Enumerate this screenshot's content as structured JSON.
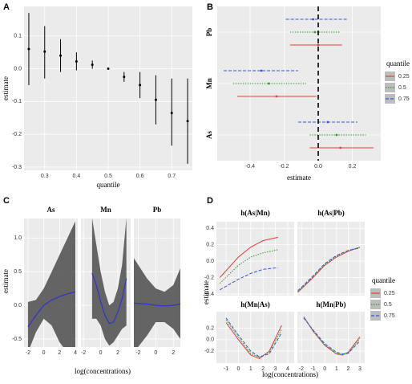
{
  "chart_data": [
    {
      "type": "pointrange",
      "label": "A",
      "xlabel": "quantile",
      "ylabel": "estimate",
      "x": [
        0.25,
        0.3,
        0.35,
        0.4,
        0.45,
        0.5,
        0.55,
        0.6,
        0.65,
        0.7,
        0.75
      ],
      "values": [
        0.06,
        0.052,
        0.04,
        0.022,
        0.012,
        0.0,
        -0.025,
        -0.05,
        -0.095,
        -0.135,
        -0.16
      ],
      "lower": [
        -0.05,
        -0.03,
        -0.01,
        -0.005,
        0.0,
        0.0,
        -0.04,
        -0.09,
        -0.17,
        -0.235,
        -0.29
      ],
      "upper": [
        0.17,
        0.13,
        0.09,
        0.05,
        0.025,
        0.0,
        -0.01,
        -0.01,
        -0.02,
        -0.03,
        -0.03
      ],
      "xlim": [
        0.235,
        0.765
      ],
      "xticks": [
        0.3,
        0.4,
        0.5,
        0.6,
        0.7
      ],
      "ylim": [
        -0.31,
        0.19
      ],
      "yticks": [
        -0.3,
        -0.2,
        -0.1,
        {
          "value": 0,
          "label": "0.0"
        },
        0.1
      ],
      "color": "#000000",
      "grid": true
    },
    {
      "type": "interval",
      "label": "B",
      "xlabel": "estimate",
      "categories": [
        "Pb",
        "Mn",
        "As"
      ],
      "series": [
        {
          "name": "0.25",
          "color": "#e0403a",
          "linestyle": "solid",
          "values": [
            0.0,
            -0.245,
            0.13
          ],
          "lower": [
            -0.165,
            -0.475,
            -0.05
          ],
          "upper": [
            0.14,
            -0.01,
            0.325
          ]
        },
        {
          "name": "0.5",
          "color": "#2e9a2e",
          "linestyle": "dotted",
          "values": [
            -0.02,
            -0.29,
            0.108
          ],
          "lower": [
            -0.165,
            -0.5,
            -0.05
          ],
          "upper": [
            0.13,
            -0.07,
            0.28
          ]
        },
        {
          "name": "0.75",
          "color": "#3a55d8",
          "linestyle": "dashed",
          "values": [
            -0.03,
            -0.334,
            0.056
          ],
          "lower": [
            -0.19,
            -0.555,
            -0.118
          ],
          "upper": [
            0.17,
            -0.118,
            0.23
          ]
        }
      ],
      "xlim": [
        -0.593,
        0.367
      ],
      "xticks": [
        -0.4,
        -0.2,
        {
          "value": 0,
          "label": "0.0"
        },
        0.2
      ],
      "legend_title": "quantile",
      "legend": "right",
      "grid": true
    },
    {
      "type": "ribbon-facets",
      "label": "C",
      "xlabel": "log(concentrations)",
      "ylabel": "estimate",
      "ylim": [
        -0.62,
        1.29
      ],
      "yticks": [
        -0.5,
        {
          "value": 0,
          "label": "0.0"
        },
        0.5,
        {
          "value": 1,
          "label": "1.0"
        }
      ],
      "color": "#3333cc",
      "band_color": "#555555",
      "grid": true,
      "facets": [
        {
          "title": "As",
          "xlim": [
            -2.5,
            4.3
          ],
          "xticks": [
            -2,
            0,
            2,
            4
          ],
          "x": [
            -2,
            -1,
            0,
            1,
            2,
            3,
            4
          ],
          "values": [
            -0.32,
            -0.15,
            0.0,
            0.08,
            0.13,
            0.17,
            0.2
          ],
          "lower": [
            -0.7,
            -0.4,
            -0.2,
            -0.3,
            -0.55,
            -0.7,
            -0.72
          ],
          "upper": [
            0.05,
            0.08,
            0.25,
            0.5,
            0.75,
            1.0,
            1.25
          ]
        },
        {
          "title": "Mn",
          "xlim": [
            -2.3,
            3.5
          ],
          "xticks": [
            -2,
            0,
            2
          ],
          "x": [
            -1,
            -0.5,
            0,
            0.5,
            1,
            1.5,
            2,
            2.5,
            3
          ],
          "values": [
            0.48,
            0.3,
            0.05,
            -0.15,
            -0.27,
            -0.25,
            -0.1,
            0.1,
            0.4
          ],
          "lower": [
            -0.2,
            -0.2,
            -0.3,
            -0.5,
            -0.6,
            -0.55,
            -0.45,
            -0.35,
            -0.3
          ],
          "upper": [
            1.3,
            0.9,
            0.5,
            0.2,
            0.0,
            0.05,
            0.25,
            0.6,
            1.3
          ]
        },
        {
          "title": "Pb",
          "xlim": [
            -2.5,
            2.8
          ],
          "xticks": [
            -2,
            0,
            2
          ],
          "x": [
            -2.5,
            -1,
            0,
            1,
            2,
            2.8
          ],
          "values": [
            0.03,
            0.02,
            0.0,
            -0.01,
            0.0,
            0.02
          ],
          "lower": [
            -0.7,
            -0.45,
            -0.25,
            -0.25,
            -0.35,
            -0.5
          ],
          "upper": [
            0.7,
            0.4,
            0.25,
            0.2,
            0.3,
            0.55
          ]
        }
      ]
    },
    {
      "type": "facet-lines",
      "label": "D",
      "xlabel": "log(concentrations)",
      "ylabel": "estimate",
      "legend_title": "quantile",
      "grid": true,
      "series": [
        {
          "name": "0.25",
          "color": "#e0403a",
          "linestyle": "solid"
        },
        {
          "name": "0.5",
          "color": "#2e9a2e",
          "linestyle": "dotted"
        },
        {
          "name": "0.75",
          "color": "#3a55d8",
          "linestyle": "dashed"
        }
      ],
      "columns": [
        {
          "xlim": [
            -1.78,
            4.52
          ],
          "xticks": [
            -1,
            0,
            1,
            2,
            3,
            4
          ]
        },
        {
          "xlim": [
            -2.34,
            3.41
          ],
          "xticks": [
            -2,
            -1,
            0,
            1,
            2,
            3
          ]
        }
      ],
      "rows": [
        {
          "ylim": [
            -0.42,
            0.48
          ],
          "yticks": [
            -0.4,
            -0.2,
            {
              "value": 0,
              "label": "0.0"
            },
            0.2,
            0.4
          ],
          "facets": [
            {
              "title": "h(As|Mn)",
              "x": [
                -1.5,
                0,
                1,
                2,
                3.2
              ],
              "lines": [
                [
                  -0.2,
                  0.05,
                  0.17,
                  0.25,
                  0.29
                ],
                [
                  -0.27,
                  -0.05,
                  0.05,
                  0.1,
                  0.14
                ],
                [
                  -0.35,
                  -0.22,
                  -0.15,
                  -0.1,
                  -0.08
                ]
              ]
            },
            {
              "title": "h(As|Pb)",
              "x": [
                -2.3,
                -1,
                0,
                1,
                2,
                3
              ],
              "lines": [
                [
                  -0.38,
                  -0.2,
                  -0.05,
                  0.05,
                  0.12,
                  0.17
                ],
                [
                  -0.37,
                  -0.19,
                  -0.04,
                  0.06,
                  0.13,
                  0.17
                ],
                [
                  -0.36,
                  -0.18,
                  -0.03,
                  0.07,
                  0.13,
                  0.16
                ]
              ]
            }
          ]
        },
        {
          "ylim": [
            -0.41,
            0.49
          ],
          "yticks": [
            -0.2,
            {
              "value": 0,
              "label": "0.0"
            },
            0.2
          ],
          "facets": [
            {
              "title": "h(Mn|As)",
              "x": [
                -1,
                0,
                1,
                1.7,
                2.5,
                3.5
              ],
              "lines": [
                [
                  0.3,
                  0.0,
                  -0.27,
                  -0.33,
                  -0.2,
                  0.25
                ],
                [
                  0.35,
                  0.04,
                  -0.24,
                  -0.31,
                  -0.22,
                  0.18
                ],
                [
                  0.38,
                  0.08,
                  -0.2,
                  -0.3,
                  -0.25,
                  0.12
                ]
              ]
            },
            {
              "title": "h(Mn|Pb)",
              "x": [
                -1.8,
                -1,
                0,
                1,
                1.5,
                2,
                3
              ],
              "lines": [
                [
                  0.4,
                  0.15,
                  -0.1,
                  -0.25,
                  -0.27,
                  -0.22,
                  0.05
                ],
                [
                  0.4,
                  0.16,
                  -0.09,
                  -0.24,
                  -0.26,
                  -0.23,
                  0.02
                ],
                [
                  0.38,
                  0.17,
                  -0.07,
                  -0.22,
                  -0.25,
                  -0.24,
                  -0.02
                ]
              ]
            }
          ]
        }
      ]
    }
  ]
}
